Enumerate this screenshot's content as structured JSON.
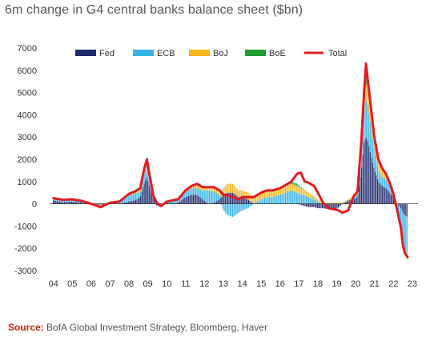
{
  "chart_data": {
    "type": "bar",
    "title": "6m change in G4 central banks balance sheet ($bn)",
    "xlabel": "",
    "ylabel": "",
    "ylim": [
      -3000,
      7000
    ],
    "yticks": [
      7000,
      6000,
      5000,
      4000,
      3000,
      2000,
      1000,
      0,
      -1000,
      -2000,
      -3000
    ],
    "xlim": [
      2003.8,
      2023.3
    ],
    "xticks": [
      {
        "value": 2004,
        "label": "04"
      },
      {
        "value": 2005,
        "label": "05"
      },
      {
        "value": 2006,
        "label": "06"
      },
      {
        "value": 2007,
        "label": "07"
      },
      {
        "value": 2008,
        "label": "08"
      },
      {
        "value": 2009,
        "label": "09"
      },
      {
        "value": 2010,
        "label": "10"
      },
      {
        "value": 2011,
        "label": "11"
      },
      {
        "value": 2012,
        "label": "12"
      },
      {
        "value": 2013,
        "label": "13"
      },
      {
        "value": 2014,
        "label": "14"
      },
      {
        "value": 2015,
        "label": "15"
      },
      {
        "value": 2016,
        "label": "16"
      },
      {
        "value": 2017,
        "label": "17"
      },
      {
        "value": 2018,
        "label": "18"
      },
      {
        "value": 2019,
        "label": "19"
      },
      {
        "value": 2020,
        "label": "20"
      },
      {
        "value": 2021,
        "label": "21"
      },
      {
        "value": 2022,
        "label": "22"
      },
      {
        "value": 2023,
        "label": "23"
      }
    ],
    "legend_position": "top",
    "grid": false,
    "series": [
      {
        "name": "Fed",
        "color": "#1f2a6e",
        "kind": "bar"
      },
      {
        "name": "ECB",
        "color": "#36b3e6",
        "kind": "bar"
      },
      {
        "name": "BoJ",
        "color": "#f3b61f",
        "kind": "bar"
      },
      {
        "name": "BoE",
        "color": "#1e9e2e",
        "kind": "bar"
      },
      {
        "name": "Total",
        "color": "#e31b23",
        "kind": "line"
      }
    ],
    "x": [
      2004.0,
      2004.5,
      2005.0,
      2005.5,
      2006.0,
      2006.5,
      2007.0,
      2007.5,
      2008.0,
      2008.3,
      2008.6,
      2008.8,
      2008.95,
      2009.1,
      2009.3,
      2009.5,
      2009.7,
      2010.0,
      2010.3,
      2010.6,
      2011.0,
      2011.3,
      2011.6,
      2011.9,
      2012.2,
      2012.5,
      2012.8,
      2013.0,
      2013.2,
      2013.5,
      2013.8,
      2014.0,
      2014.3,
      2014.6,
      2015.0,
      2015.3,
      2015.6,
      2016.0,
      2016.3,
      2016.6,
      2016.9,
      2017.1,
      2017.3,
      2017.5,
      2017.8,
      2018.0,
      2018.3,
      2018.6,
      2018.9,
      2019.1,
      2019.3,
      2019.6,
      2019.9,
      2020.1,
      2020.3,
      2020.45,
      2020.55,
      2020.65,
      2020.8,
      2021.0,
      2021.2,
      2021.4,
      2021.6,
      2021.8,
      2022.0,
      2022.2,
      2022.4,
      2022.5,
      2022.6,
      2022.75
    ],
    "fed": [
      150,
      80,
      100,
      50,
      0,
      -50,
      0,
      0,
      100,
      150,
      300,
      900,
      1200,
      700,
      300,
      100,
      0,
      50,
      0,
      50,
      300,
      400,
      400,
      200,
      0,
      50,
      200,
      400,
      500,
      500,
      300,
      300,
      200,
      0,
      0,
      0,
      0,
      0,
      0,
      0,
      0,
      -50,
      -100,
      -150,
      -150,
      -200,
      -200,
      -250,
      -250,
      -150,
      0,
      150,
      200,
      300,
      1500,
      2800,
      3000,
      2800,
      2200,
      1500,
      1000,
      800,
      700,
      500,
      300,
      0,
      -200,
      -400,
      -500,
      -600
    ],
    "ecb": [
      50,
      50,
      50,
      50,
      50,
      0,
      50,
      100,
      300,
      300,
      200,
      400,
      500,
      300,
      0,
      -100,
      -100,
      0,
      100,
      100,
      200,
      300,
      300,
      400,
      600,
      500,
      200,
      -300,
      -500,
      -600,
      -400,
      -300,
      -200,
      0,
      200,
      300,
      300,
      400,
      500,
      600,
      500,
      400,
      400,
      300,
      200,
      100,
      0,
      0,
      -50,
      -50,
      0,
      0,
      50,
      100,
      800,
      1500,
      1700,
      1600,
      1300,
      800,
      500,
      400,
      400,
      300,
      100,
      -200,
      -800,
      -1300,
      -1500,
      -1700
    ],
    "boj": [
      50,
      50,
      50,
      30,
      -50,
      -100,
      0,
      0,
      50,
      50,
      100,
      100,
      100,
      100,
      0,
      0,
      0,
      50,
      50,
      50,
      100,
      100,
      150,
      100,
      100,
      150,
      200,
      300,
      400,
      400,
      300,
      300,
      300,
      300,
      300,
      300,
      300,
      300,
      300,
      300,
      300,
      300,
      250,
      200,
      150,
      100,
      50,
      50,
      50,
      50,
      50,
      50,
      100,
      150,
      300,
      500,
      700,
      800,
      700,
      500,
      400,
      300,
      200,
      100,
      0,
      -100,
      -100,
      -150,
      -200,
      -250
    ],
    "boe": [
      0,
      0,
      0,
      0,
      0,
      0,
      0,
      0,
      0,
      50,
      100,
      150,
      200,
      150,
      50,
      0,
      0,
      0,
      0,
      0,
      0,
      0,
      50,
      50,
      50,
      50,
      0,
      0,
      0,
      0,
      0,
      0,
      0,
      0,
      0,
      0,
      0,
      0,
      50,
      100,
      100,
      50,
      0,
      0,
      0,
      0,
      0,
      0,
      0,
      0,
      0,
      0,
      0,
      0,
      200,
      300,
      300,
      300,
      200,
      150,
      100,
      100,
      50,
      50,
      50,
      0,
      0,
      0,
      0,
      0
    ],
    "total": [
      250,
      180,
      200,
      130,
      0,
      -150,
      50,
      100,
      450,
      550,
      700,
      1550,
      2000,
      1250,
      350,
      0,
      -100,
      100,
      150,
      200,
      600,
      800,
      900,
      750,
      750,
      750,
      600,
      400,
      400,
      300,
      200,
      300,
      300,
      300,
      500,
      600,
      600,
      700,
      850,
      1000,
      1350,
      1400,
      1000,
      950,
      800,
      500,
      0,
      -200,
      -250,
      -300,
      -400,
      -300,
      350,
      550,
      2800,
      5100,
      6300,
      5500,
      4400,
      2950,
      2000,
      1600,
      1350,
      950,
      450,
      -300,
      -1100,
      -1850,
      -2200,
      -2400
    ]
  },
  "source": {
    "label": "Source:",
    "text": " BofA Global Investment Strategy, Bloomberg, Haver"
  }
}
